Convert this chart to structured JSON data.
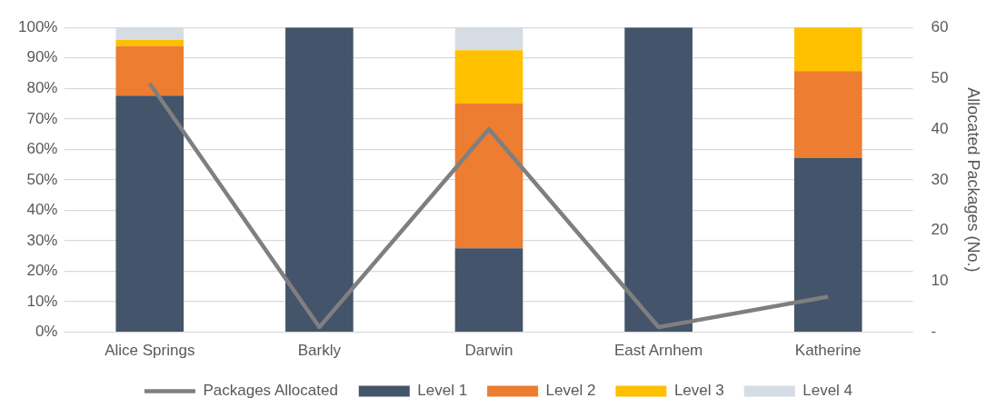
{
  "chart_data": {
    "type": "bar",
    "stacked": true,
    "categories": [
      "Alice Springs",
      "Barkly",
      "Darwin",
      "East Arnhem",
      "Katherine"
    ],
    "series": [
      {
        "name": "Level 1",
        "color": "#44546a",
        "values": [
          77.6,
          100,
          27.5,
          100,
          57.1
        ]
      },
      {
        "name": "Level 2",
        "color": "#ed7d31",
        "values": [
          16.3,
          0,
          47.5,
          0,
          28.6
        ]
      },
      {
        "name": "Level 3",
        "color": "#ffc000",
        "values": [
          2.0,
          0,
          17.5,
          0,
          14.3
        ]
      },
      {
        "name": "Level 4",
        "color": "#d6dce4",
        "values": [
          4.1,
          0,
          7.5,
          0,
          0
        ]
      },
      {
        "name": "Packages Allocated",
        "type": "line",
        "axis": "y2",
        "color": "#7f7f7f",
        "marker": "none",
        "values": [
          49,
          1,
          40,
          1,
          7
        ]
      }
    ],
    "ylim": [
      0,
      100
    ],
    "yticks": [
      {
        "value": 0,
        "label": "0%"
      },
      {
        "value": 10,
        "label": "10%"
      },
      {
        "value": 20,
        "label": "20%"
      },
      {
        "value": 30,
        "label": "30%"
      },
      {
        "value": 40,
        "label": "40%"
      },
      {
        "value": 50,
        "label": "50%"
      },
      {
        "value": 60,
        "label": "60%"
      },
      {
        "value": 70,
        "label": "70%"
      },
      {
        "value": 80,
        "label": "80%"
      },
      {
        "value": 90,
        "label": "90%"
      },
      {
        "value": 100,
        "label": "100%"
      }
    ],
    "y2lim": [
      0,
      60
    ],
    "y2ticks": [
      {
        "value": 0,
        "label": "-"
      },
      10,
      20,
      30,
      40,
      50,
      60
    ],
    "y2label": "Allocated Packages (No.)",
    "grid": "y",
    "legend": "bottom"
  }
}
